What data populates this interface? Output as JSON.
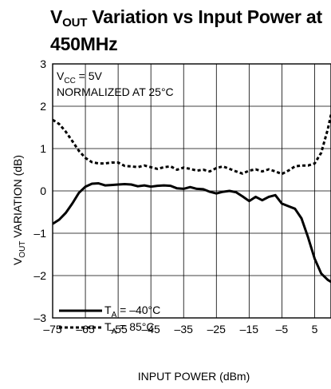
{
  "chart_data": {
    "type": "line",
    "title": {
      "prefix": "V",
      "sub": "OUT",
      "line1_rest": " Variation vs Input Power at",
      "line2": "450MHz"
    },
    "xlabel": "INPUT POWER (dBm)",
    "ylabel": {
      "prefix": "V",
      "sub": "OUT",
      "rest": " VARIATION (dB)"
    },
    "xlim": [
      -75,
      10
    ],
    "ylim": [
      -3,
      3
    ],
    "xticks": [
      -75,
      -65,
      -55,
      -45,
      -35,
      -25,
      -15,
      -5,
      5
    ],
    "xtick_labels": [
      "–75",
      "–65",
      "–55",
      "–45",
      "–35",
      "–25",
      "–15",
      "–5",
      "5"
    ],
    "yticks": [
      -3,
      -2,
      -1,
      0,
      1,
      2,
      3
    ],
    "ytick_labels": [
      "–3",
      "–2",
      "–1",
      "0",
      "1",
      "2",
      "3"
    ],
    "grid": true,
    "annotations": [
      {
        "prefix": "V",
        "sub": "CC",
        "rest": " = 5V"
      },
      {
        "text": "NORMALIZED AT 25°C"
      }
    ],
    "legend_position": "bottom-left",
    "series": [
      {
        "name": {
          "prefix": "T",
          "sub": "A",
          "rest": " = –40°C"
        },
        "style": "solid",
        "x": [
          -75,
          -73,
          -71,
          -69,
          -67,
          -65,
          -63,
          -61,
          -59,
          -57,
          -55,
          -53,
          -51,
          -49,
          -47,
          -45,
          -43,
          -41,
          -39,
          -37,
          -35,
          -33,
          -31,
          -29,
          -27,
          -25,
          -23,
          -21,
          -19,
          -17,
          -15,
          -13,
          -11,
          -9,
          -7,
          -5,
          -3,
          -1,
          1,
          3,
          5,
          7,
          9,
          10
        ],
        "y": [
          -0.78,
          -0.68,
          -0.52,
          -0.3,
          -0.05,
          0.1,
          0.17,
          0.18,
          0.13,
          0.14,
          0.15,
          0.16,
          0.15,
          0.11,
          0.13,
          0.1,
          0.12,
          0.13,
          0.12,
          0.06,
          0.05,
          0.09,
          0.05,
          0.04,
          -0.02,
          -0.06,
          -0.02,
          0.0,
          -0.03,
          -0.13,
          -0.24,
          -0.14,
          -0.22,
          -0.14,
          -0.1,
          -0.3,
          -0.36,
          -0.42,
          -0.65,
          -1.1,
          -1.6,
          -1.95,
          -2.1,
          -2.15
        ]
      },
      {
        "name": {
          "prefix": "T",
          "sub": "A",
          "rest": " = 85°C"
        },
        "style": "dashed",
        "x": [
          -75,
          -73,
          -71,
          -69,
          -67,
          -65,
          -63,
          -61,
          -59,
          -57,
          -55,
          -53,
          -51,
          -49,
          -47,
          -45,
          -43,
          -41,
          -39,
          -37,
          -35,
          -33,
          -31,
          -29,
          -27,
          -25,
          -23,
          -21,
          -19,
          -17,
          -15,
          -13,
          -11,
          -9,
          -7,
          -5,
          -3,
          -1,
          1,
          3,
          5,
          7,
          9,
          10
        ],
        "y": [
          1.68,
          1.58,
          1.4,
          1.18,
          0.95,
          0.78,
          0.68,
          0.65,
          0.65,
          0.67,
          0.67,
          0.59,
          0.58,
          0.56,
          0.6,
          0.56,
          0.52,
          0.56,
          0.58,
          0.5,
          0.55,
          0.52,
          0.48,
          0.5,
          0.46,
          0.54,
          0.58,
          0.52,
          0.46,
          0.41,
          0.48,
          0.51,
          0.46,
          0.51,
          0.46,
          0.4,
          0.48,
          0.58,
          0.6,
          0.6,
          0.65,
          0.9,
          1.45,
          1.8
        ]
      }
    ]
  }
}
